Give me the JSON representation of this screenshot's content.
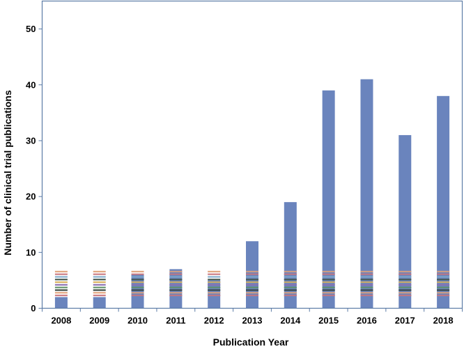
{
  "chart_data": {
    "type": "bar",
    "title": "",
    "xlabel": "Publication Year",
    "ylabel": "Number of clinical trial publications",
    "categories": [
      "2008",
      "2009",
      "2010",
      "2011",
      "2012",
      "2013",
      "2014",
      "2015",
      "2016",
      "2017",
      "2018"
    ],
    "values": [
      2,
      2,
      6,
      7,
      5,
      12,
      19,
      39,
      41,
      31,
      38
    ],
    "ylim": [
      0,
      55
    ],
    "yticks": [
      "0",
      "10",
      "20",
      "30",
      "40",
      "50"
    ],
    "ytick_values": [
      0,
      10,
      20,
      30,
      40,
      50
    ],
    "grid": false,
    "legend": "none",
    "colors": {
      "bar": "#6A84BD",
      "frame": "#5B7BA6",
      "stripes": [
        "#E0A27A",
        "#C9767D",
        "#7EA9C9",
        "#3E5248",
        "#D9B15A",
        "#8C6FB0",
        "#5E8F65",
        "#2F3E37"
      ]
    }
  }
}
